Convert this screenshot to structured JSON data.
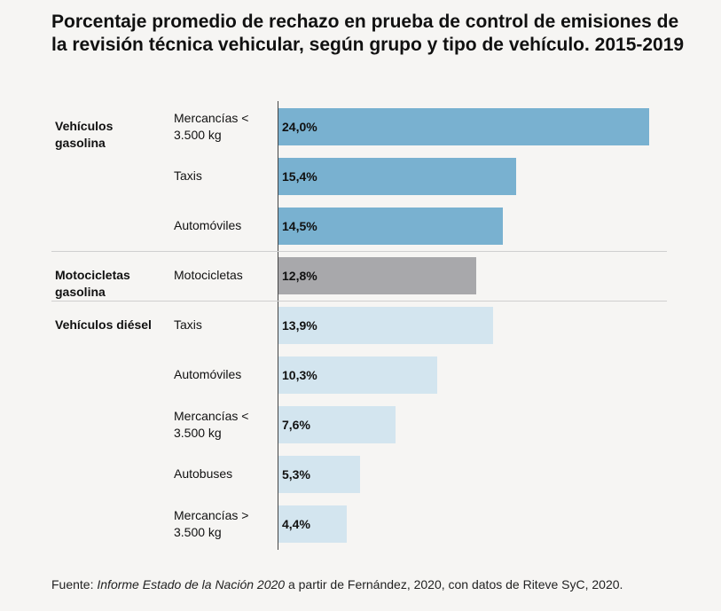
{
  "title": "Porcentaje promedio de rechazo en prueba de control de emisiones de la revisión técnica vehicular, según grupo y tipo de vehículo. 2015-2019",
  "source": {
    "prefix": "Fuente: ",
    "italic": "Informe Estado de la Nación 2020",
    "suffix": " a partir de Fernández, 2020, con datos de Riteve SyC, 2020."
  },
  "colors": {
    "gasolina": "#79b1d0",
    "motocicletas": "#a8a8ab",
    "diesel": "#d3e5ef"
  },
  "chart_data": {
    "type": "bar",
    "orientation": "horizontal",
    "title": "Porcentaje promedio de rechazo en prueba de control de emisiones de la revisión técnica vehicular, según grupo y tipo de vehículo. 2015-2019",
    "xlim": [
      0,
      24.0
    ],
    "groups": [
      {
        "name": "Vehículos gasolina",
        "color_key": "gasolina",
        "items": [
          {
            "category": "Mercancías < 3.500 kg",
            "value": 24.0,
            "label": "24,0%"
          },
          {
            "category": "Taxis",
            "value": 15.4,
            "label": "15,4%"
          },
          {
            "category": "Automóviles",
            "value": 14.5,
            "label": "14,5%"
          }
        ]
      },
      {
        "name": "Motocicletas gasolina",
        "color_key": "motocicletas",
        "items": [
          {
            "category": "Motocicletas",
            "value": 12.8,
            "label": "12,8%"
          }
        ]
      },
      {
        "name": "Vehículos diésel",
        "color_key": "diesel",
        "items": [
          {
            "category": "Taxis",
            "value": 13.9,
            "label": "13,9%"
          },
          {
            "category": "Automóviles",
            "value": 10.3,
            "label": "10,3%"
          },
          {
            "category": "Mercancías < 3.500 kg",
            "value": 7.6,
            "label": "7,6%"
          },
          {
            "category": "Autobuses",
            "value": 5.3,
            "label": "5,3%"
          },
          {
            "category": "Mercancías > 3.500 kg",
            "value": 4.4,
            "label": "4,4%"
          }
        ]
      }
    ]
  }
}
